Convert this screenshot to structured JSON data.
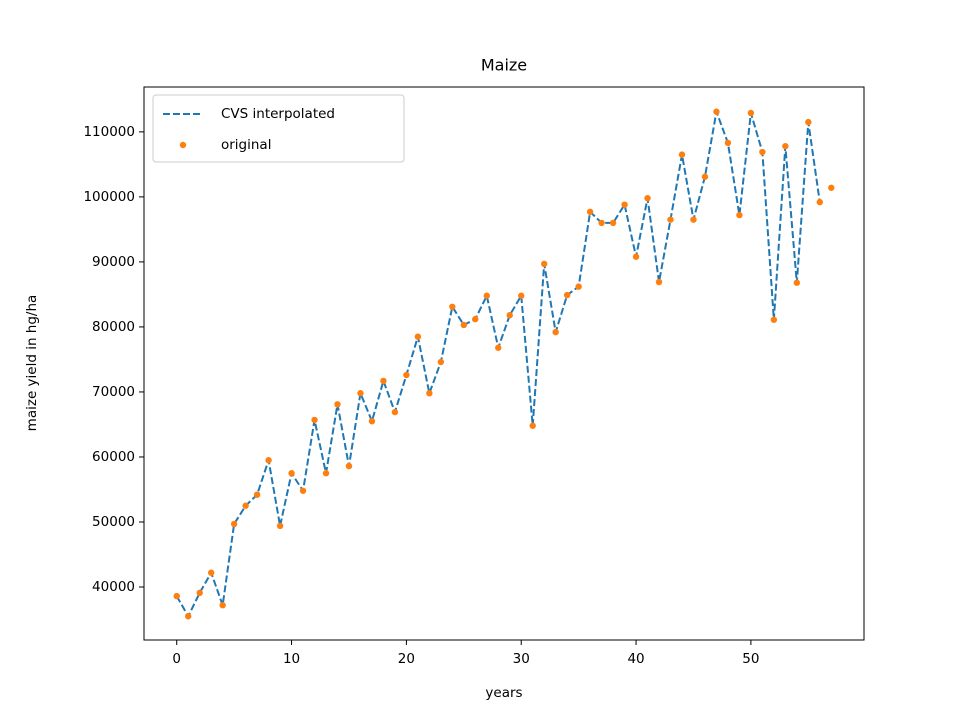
{
  "chart_data": {
    "type": "line",
    "title": "Maize",
    "xlabel": "years",
    "ylabel": "maize yield in hg/ha",
    "x": [
      0,
      1,
      2,
      3,
      4,
      5,
      6,
      7,
      8,
      9,
      10,
      11,
      12,
      13,
      14,
      15,
      16,
      17,
      18,
      19,
      20,
      21,
      22,
      23,
      24,
      25,
      26,
      27,
      28,
      29,
      30,
      31,
      32,
      33,
      34,
      35,
      36,
      37,
      38,
      39,
      40,
      41,
      42,
      43,
      44,
      45,
      46,
      47,
      48,
      49,
      50,
      51,
      52,
      53,
      54,
      55,
      56,
      57
    ],
    "series": [
      {
        "name": "CVS interpolated",
        "color": "#1f77b4",
        "style": "dashed",
        "values": [
          38600,
          35500,
          39100,
          42200,
          37200,
          49700,
          52500,
          54200,
          59500,
          49400,
          57500,
          54800,
          65700,
          57500,
          68100,
          58600,
          69800,
          65500,
          71700,
          66900,
          72600,
          78500,
          69800,
          74600,
          83100,
          80300,
          81200,
          84800,
          76800,
          81800,
          84800,
          64800,
          89700,
          79200,
          84900,
          86200,
          97700,
          96000,
          96000,
          98800,
          90800,
          99800,
          86900,
          96500,
          106500,
          96500,
          103100,
          113100,
          108300,
          97200,
          112900,
          106900,
          81100,
          107800,
          86800,
          111500,
          99200,
          null
        ]
      },
      {
        "name": "original",
        "color": "#ff7f0e",
        "style": "points",
        "values": [
          38600,
          35500,
          39100,
          42200,
          37200,
          49700,
          52500,
          54200,
          59500,
          49400,
          57500,
          54800,
          65700,
          57500,
          68100,
          58600,
          69800,
          65500,
          71700,
          66900,
          72600,
          78500,
          69800,
          74600,
          83100,
          80300,
          81200,
          84800,
          76800,
          81800,
          84800,
          64800,
          89700,
          79200,
          84900,
          86200,
          97700,
          96000,
          96000,
          98800,
          90800,
          99800,
          86900,
          96500,
          106500,
          96500,
          103100,
          113100,
          108300,
          97200,
          112900,
          106900,
          81100,
          107800,
          86800,
          111500,
          99200,
          101400
        ]
      }
    ],
    "xlim": [
      -2.85,
      59.85
    ],
    "xticks": [
      0,
      10,
      20,
      30,
      40,
      50
    ],
    "ylim": [
      31850,
      116900
    ],
    "yticks": [
      40000,
      50000,
      60000,
      70000,
      80000,
      90000,
      100000,
      110000
    ],
    "legend": "upper left"
  }
}
